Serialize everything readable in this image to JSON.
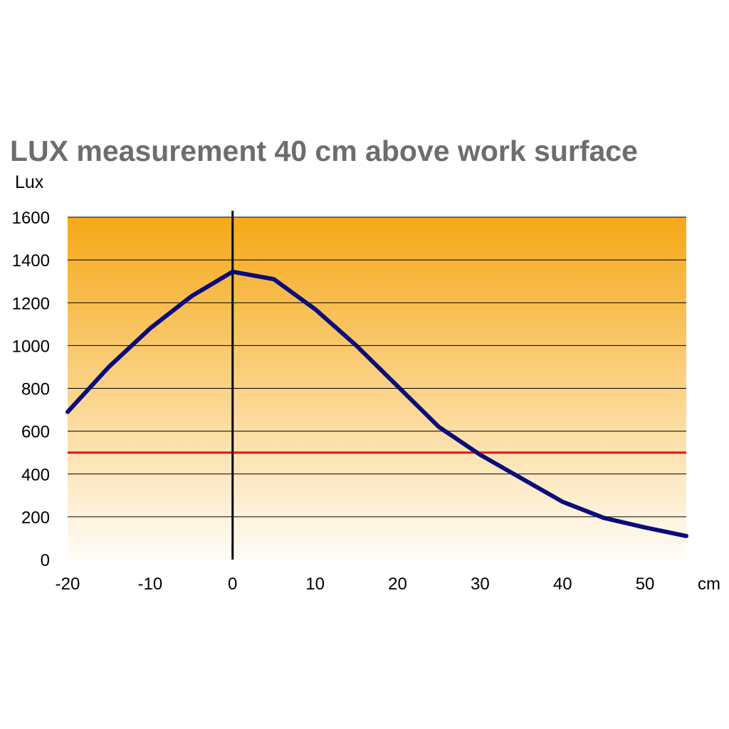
{
  "chart_data": {
    "type": "line",
    "title": "LUX measurement 40  cm above work surface",
    "ylabel": "Lux",
    "xlabel": "cm",
    "xlim": [
      -20,
      55
    ],
    "ylim": [
      0,
      1600
    ],
    "x_ticks": [
      "-20",
      "-10",
      "0",
      "10",
      "20",
      "30",
      "40",
      "50"
    ],
    "y_ticks": [
      "0",
      "200",
      "400",
      "600",
      "800",
      "1000",
      "1200",
      "1400",
      "1600"
    ],
    "grid": true,
    "series": [
      {
        "x": [
          -20,
          -15,
          -10,
          -5,
          0,
          5,
          10,
          15,
          20,
          25,
          30,
          35,
          40,
          45,
          50,
          55
        ],
        "values": [
          690,
          900,
          1080,
          1230,
          1345,
          1310,
          1170,
          1000,
          810,
          620,
          490,
          380,
          270,
          195,
          150,
          110
        ]
      }
    ],
    "reference_line": {
      "y": 500
    },
    "zero_line": {
      "x": 0
    },
    "colors": {
      "line": "#0b0b7a",
      "reference": "#e8100f",
      "gradient_top": "#f6a817",
      "gradient_bottom": "#fffdf8",
      "grid": "#000000"
    }
  }
}
